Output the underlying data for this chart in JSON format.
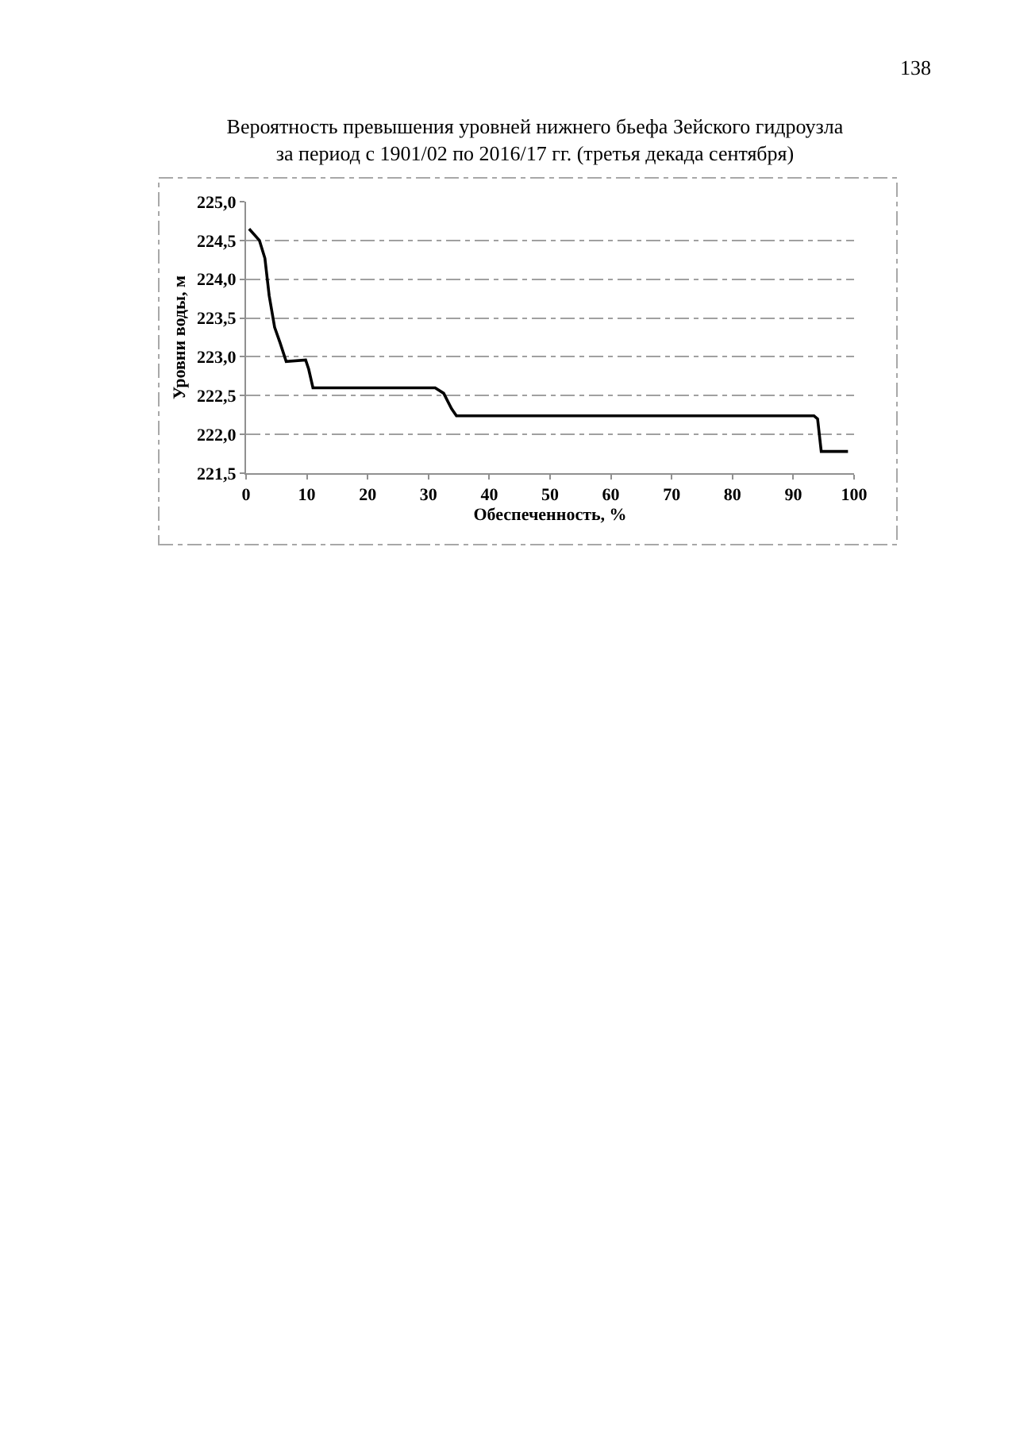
{
  "chart_data": {
    "type": "line",
    "title": "Вероятность превышения уровней нижнего бьефа Зейского гидроузла\nза период с 1901/02 по 2016/17 гг. (третья декада сентября)",
    "xlabel": "Обеспеченность, %",
    "ylabel": "Уровни воды, м",
    "annotations": [
      "138"
    ],
    "series": [
      {
        "color": "#000000",
        "x": [
          0.5,
          2.2,
          3.1,
          3.8,
          4.7,
          5.6,
          6.6,
          9.8,
          10.3,
          11.0,
          31.1,
          32.5,
          33.8,
          34.6,
          93.4,
          94.0,
          94.6,
          99.0
        ],
        "values": [
          224.65,
          224.5,
          224.27,
          223.79,
          223.38,
          223.18,
          222.94,
          222.96,
          222.84,
          222.6,
          222.6,
          222.53,
          222.33,
          222.24,
          222.24,
          222.2,
          221.78,
          221.78
        ]
      }
    ],
    "xlim": [
      0,
      100
    ],
    "xticks": [
      0,
      10,
      20,
      30,
      40,
      50,
      60,
      70,
      80,
      90,
      100
    ],
    "ylim": [
      221.5,
      225.0
    ],
    "yticks": [
      {
        "value": 221.5,
        "label": "221,5"
      },
      {
        "value": 222.0,
        "label": "222,0"
      },
      {
        "value": 222.5,
        "label": "222,5"
      },
      {
        "value": 223.0,
        "label": "223,0"
      },
      {
        "value": 223.5,
        "label": "223,5"
      },
      {
        "value": 224.0,
        "label": "224,0"
      },
      {
        "value": 224.5,
        "label": "224,5"
      },
      {
        "value": 225.0,
        "label": "225,0"
      }
    ],
    "grid": "y",
    "marker": "none",
    "line_style": "solid"
  }
}
